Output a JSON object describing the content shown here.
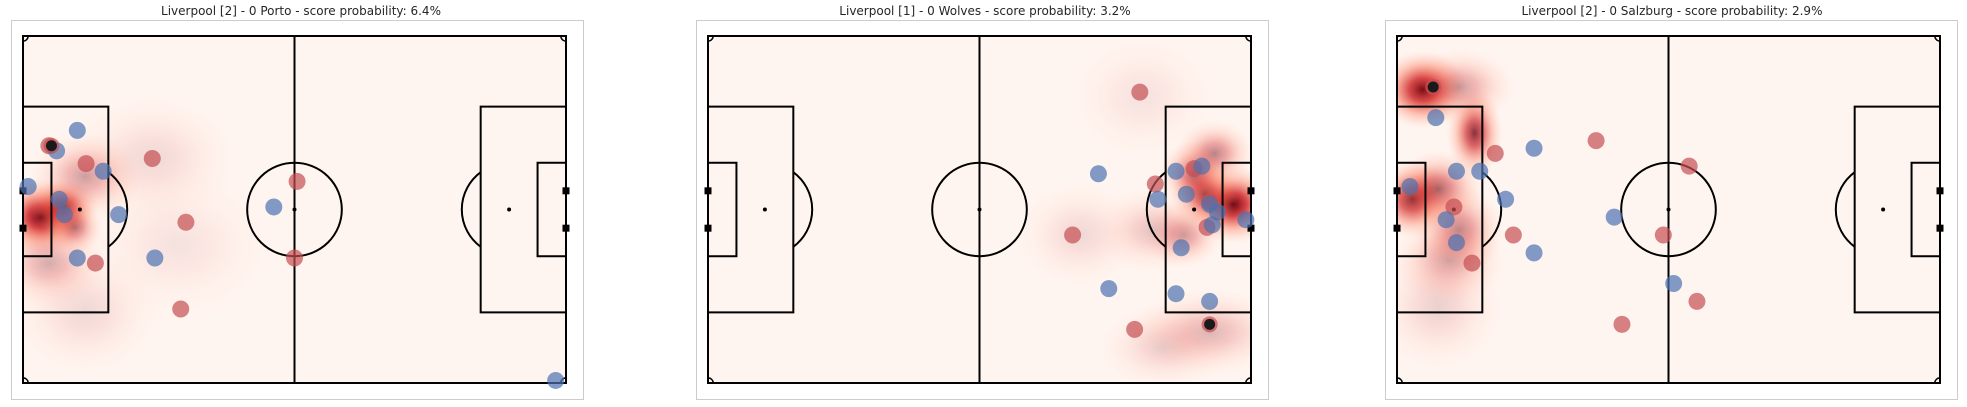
{
  "chart_data": [
    {
      "type": "scatter",
      "title": "Liverpool [2] - 0 Porto - score probability: 6.4%",
      "xlim": [
        0,
        105
      ],
      "ylim": [
        0,
        68
      ],
      "grid": false,
      "heat_blobs": [
        {
          "x": 3.5,
          "y": 32.5,
          "sx": 4,
          "sy": 3.5,
          "a": 1.0
        },
        {
          "x": 8,
          "y": 34.5,
          "sx": 3,
          "sy": 2.5,
          "a": 0.75
        },
        {
          "x": 10,
          "y": 30.5,
          "sx": 2.5,
          "sy": 2.5,
          "a": 0.5
        },
        {
          "x": 12,
          "y": 40.5,
          "sx": 5,
          "sy": 4,
          "a": 0.35
        },
        {
          "x": 5,
          "y": 23.5,
          "sx": 5,
          "sy": 4,
          "a": 0.3
        },
        {
          "x": 25,
          "y": 44,
          "sx": 8,
          "sy": 6,
          "a": 0.12
        },
        {
          "x": 30,
          "y": 27,
          "sx": 9,
          "sy": 7,
          "a": 0.08
        },
        {
          "x": 12,
          "y": 14,
          "sx": 7,
          "sy": 6,
          "a": 0.12
        }
      ],
      "series": [
        {
          "name": "red",
          "color": "#c44e52",
          "points": [
            [
              5,
              46.5
            ],
            [
              12.2,
              43
            ],
            [
              25,
              44
            ],
            [
              31.5,
              31.5
            ],
            [
              30.5,
              14.5
            ],
            [
              53,
              39.5
            ],
            [
              52.5,
              24.5
            ],
            [
              14,
              23.5
            ]
          ]
        },
        {
          "name": "blue",
          "color": "#4c72b0",
          "points": [
            [
              10.5,
              49.5
            ],
            [
              6.5,
              45.5
            ],
            [
              15.5,
              41.5
            ],
            [
              1,
              38.5
            ],
            [
              7,
              36
            ],
            [
              8,
              33
            ],
            [
              18.5,
              33
            ],
            [
              10.5,
              24.5
            ],
            [
              25.5,
              24.5
            ],
            [
              48.5,
              34.5
            ],
            [
              103,
              0.5
            ]
          ]
        },
        {
          "name": "ball",
          "color": "#1a1a1a",
          "points": [
            [
              5.5,
              46.5
            ]
          ]
        }
      ]
    },
    {
      "type": "scatter",
      "title": "Liverpool [1] - 0 Wolves - score probability: 3.2%",
      "xlim": [
        0,
        105
      ],
      "ylim": [
        0,
        68
      ],
      "grid": false,
      "heat_blobs": [
        {
          "x": 101.5,
          "y": 35,
          "sx": 4,
          "sy": 3.5,
          "a": 1.0
        },
        {
          "x": 96,
          "y": 37,
          "sx": 3,
          "sy": 3,
          "a": 0.7
        },
        {
          "x": 94,
          "y": 41,
          "sx": 3,
          "sy": 3,
          "a": 0.55
        },
        {
          "x": 98,
          "y": 45,
          "sx": 3.5,
          "sy": 3,
          "a": 0.45
        },
        {
          "x": 92,
          "y": 29,
          "sx": 3.5,
          "sy": 3,
          "a": 0.35
        },
        {
          "x": 86,
          "y": 30,
          "sx": 5,
          "sy": 4,
          "a": 0.2
        },
        {
          "x": 97,
          "y": 10,
          "sx": 7,
          "sy": 4,
          "a": 0.25
        },
        {
          "x": 88,
          "y": 7,
          "sx": 6,
          "sy": 4,
          "a": 0.15
        },
        {
          "x": 72,
          "y": 29,
          "sx": 6,
          "sy": 5,
          "a": 0.12
        },
        {
          "x": 84,
          "y": 56,
          "sx": 7,
          "sy": 6,
          "a": 0.08
        }
      ],
      "series": [
        {
          "name": "red",
          "color": "#c44e52",
          "points": [
            [
              83.5,
              57
            ],
            [
              86.5,
              39
            ],
            [
              94,
              42
            ],
            [
              97,
              35.5
            ],
            [
              70.5,
              29
            ],
            [
              82.5,
              10.5
            ],
            [
              96.5,
              30.5
            ]
          ]
        },
        {
          "name": "blue",
          "color": "#4c72b0",
          "points": [
            [
              75.5,
              41
            ],
            [
              90.5,
              41.5
            ],
            [
              95.5,
              42.5
            ],
            [
              87,
              36
            ],
            [
              92.5,
              37
            ],
            [
              97,
              35
            ],
            [
              98.5,
              33.5
            ],
            [
              97.5,
              31
            ],
            [
              104,
              32
            ],
            [
              91.5,
              26.5
            ],
            [
              77.5,
              18.5
            ],
            [
              90.5,
              17.5
            ],
            [
              97,
              16
            ]
          ]
        },
        {
          "name": "ball",
          "color": "#1a1a1a",
          "points": [
            [
              97,
              11.5
            ]
          ]
        }
      ]
    },
    {
      "type": "scatter",
      "title": "Liverpool [2] - 0 Salzburg - score probability: 2.9%",
      "xlim": [
        0,
        105
      ],
      "ylim": [
        0,
        68
      ],
      "grid": false,
      "heat_blobs": [
        {
          "x": 5,
          "y": 57.5,
          "sx": 4,
          "sy": 3.5,
          "a": 1.0
        },
        {
          "x": 3,
          "y": 36,
          "sx": 3.5,
          "sy": 3.5,
          "a": 0.85
        },
        {
          "x": 15,
          "y": 49,
          "sx": 2.5,
          "sy": 4,
          "a": 0.8
        },
        {
          "x": 8,
          "y": 38,
          "sx": 4,
          "sy": 3.5,
          "a": 0.55
        },
        {
          "x": 12,
          "y": 30,
          "sx": 4,
          "sy": 4,
          "a": 0.45
        },
        {
          "x": 10,
          "y": 24,
          "sx": 5,
          "sy": 4,
          "a": 0.3
        },
        {
          "x": 12,
          "y": 58,
          "sx": 5,
          "sy": 3.5,
          "a": 0.35
        },
        {
          "x": 8,
          "y": 15,
          "sx": 6,
          "sy": 6,
          "a": 0.15
        }
      ],
      "series": [
        {
          "name": "red",
          "color": "#c44e52",
          "points": [
            [
              19,
              45
            ],
            [
              38.5,
              47.5
            ],
            [
              56.5,
              42.5
            ],
            [
              11,
              34.5
            ],
            [
              22.5,
              29
            ],
            [
              14.5,
              23.5
            ],
            [
              51.5,
              29
            ],
            [
              58,
              16
            ],
            [
              43.5,
              11.5
            ]
          ]
        },
        {
          "name": "blue",
          "color": "#4c72b0",
          "points": [
            [
              7.5,
              52
            ],
            [
              26.5,
              46
            ],
            [
              11.5,
              41.5
            ],
            [
              16,
              41.5
            ],
            [
              2.5,
              38.5
            ],
            [
              21,
              36
            ],
            [
              9.5,
              32
            ],
            [
              42,
              32.5
            ],
            [
              11.5,
              27.5
            ],
            [
              26.5,
              25.5
            ],
            [
              53.5,
              19.5
            ]
          ]
        },
        {
          "name": "ball",
          "color": "#1a1a1a",
          "points": [
            [
              7,
              58
            ]
          ]
        }
      ]
    }
  ]
}
